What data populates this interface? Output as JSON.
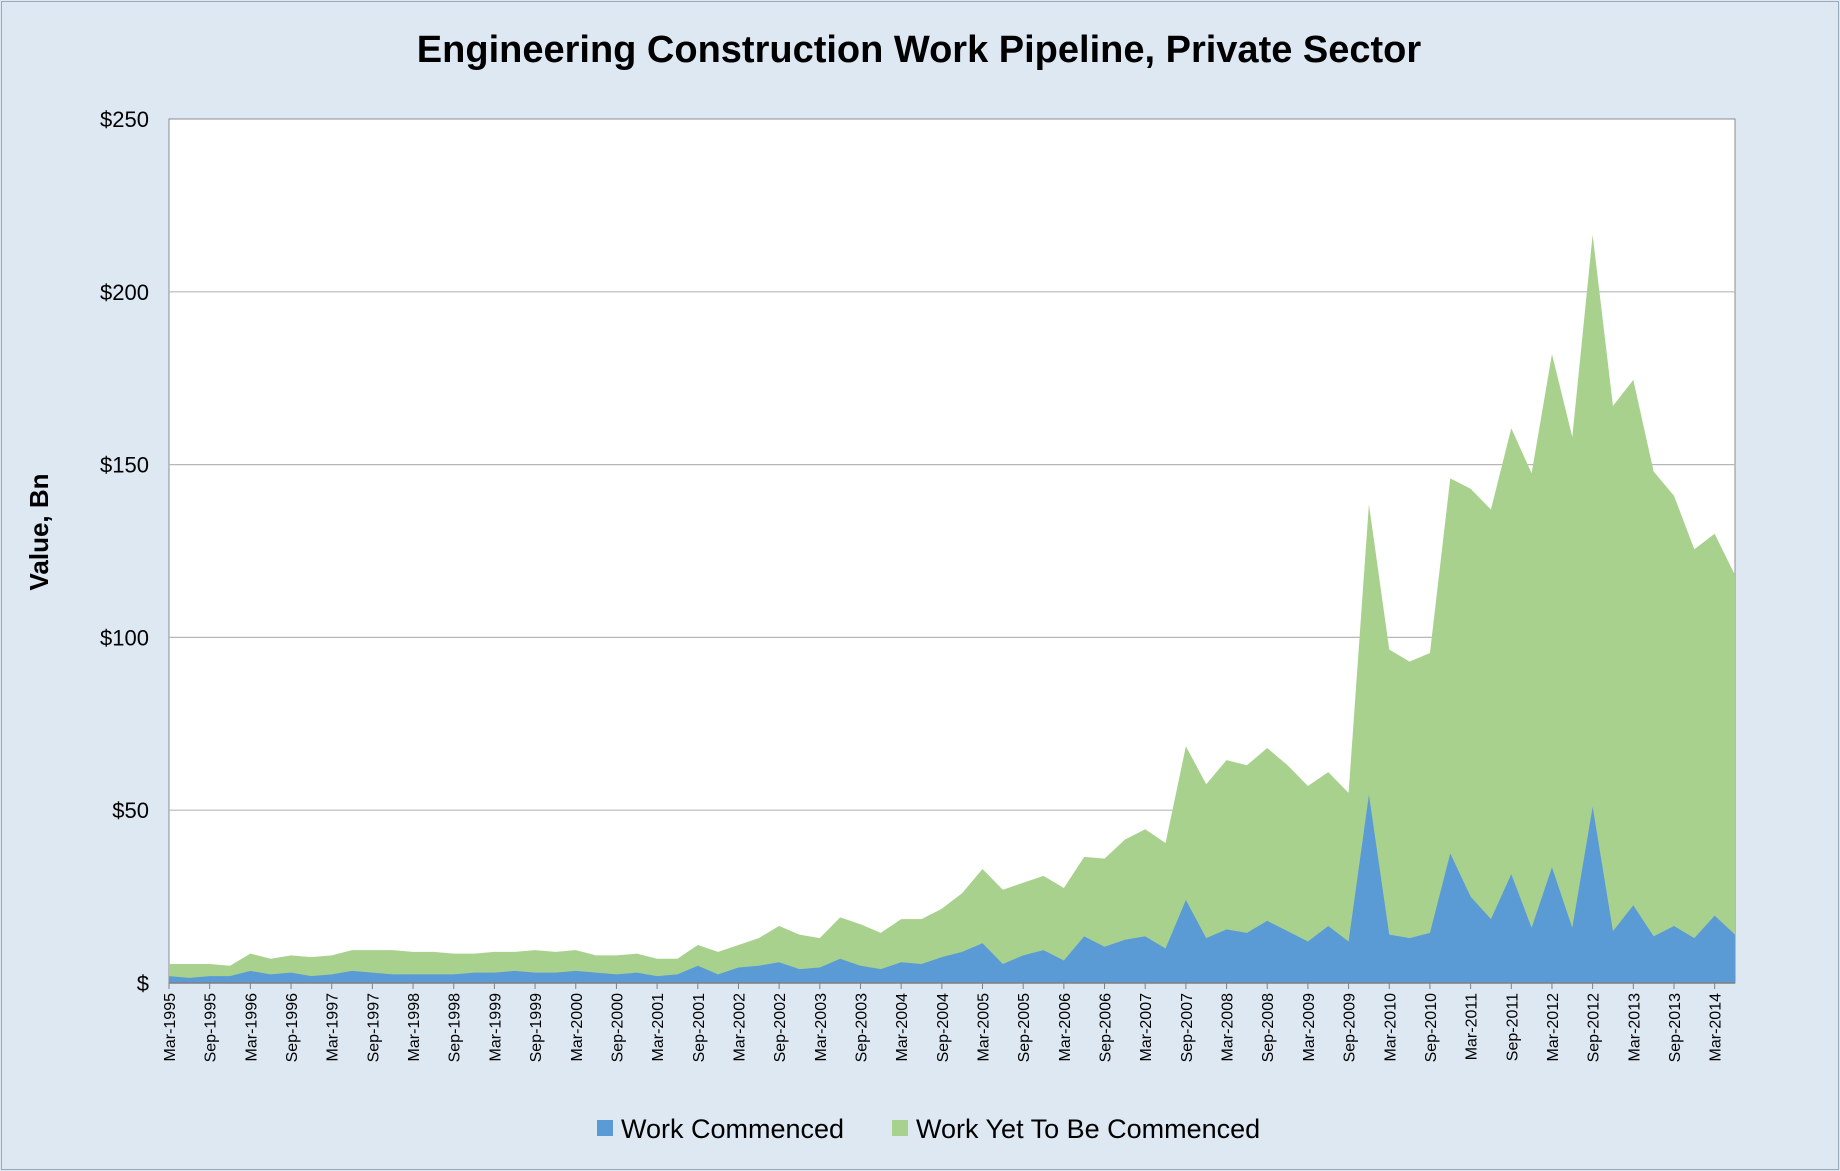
{
  "chart_data": {
    "type": "area",
    "stacked": true,
    "title": "Engineering Construction Work Pipeline, Private Sector",
    "xlabel": "",
    "ylabel": "Value, Bn",
    "ylim": [
      0,
      250
    ],
    "yticks": [
      0,
      50,
      100,
      150,
      200,
      250
    ],
    "ytick_labels": [
      "$",
      "$50",
      "$100",
      "$150",
      "$200",
      "$250"
    ],
    "grid": true,
    "legend_position": "bottom",
    "colors": {
      "Work Commenced": "#5b9bd5",
      "Work Yet To Be Commenced": "#a9d18e"
    },
    "x": [
      "Mar-1995",
      "Jun-1995",
      "Sep-1995",
      "Dec-1995",
      "Mar-1996",
      "Jun-1996",
      "Sep-1996",
      "Dec-1996",
      "Mar-1997",
      "Jun-1997",
      "Sep-1997",
      "Dec-1997",
      "Mar-1998",
      "Jun-1998",
      "Sep-1998",
      "Dec-1998",
      "Mar-1999",
      "Jun-1999",
      "Sep-1999",
      "Dec-1999",
      "Mar-2000",
      "Jun-2000",
      "Sep-2000",
      "Dec-2000",
      "Mar-2001",
      "Jun-2001",
      "Sep-2001",
      "Dec-2001",
      "Mar-2002",
      "Jun-2002",
      "Sep-2002",
      "Dec-2002",
      "Mar-2003",
      "Jun-2003",
      "Sep-2003",
      "Dec-2003",
      "Mar-2004",
      "Jun-2004",
      "Sep-2004",
      "Dec-2004",
      "Mar-2005",
      "Jun-2005",
      "Sep-2005",
      "Dec-2005",
      "Mar-2006",
      "Jun-2006",
      "Sep-2006",
      "Dec-2006",
      "Mar-2007",
      "Jun-2007",
      "Sep-2007",
      "Dec-2007",
      "Mar-2008",
      "Jun-2008",
      "Sep-2008",
      "Dec-2008",
      "Mar-2009",
      "Jun-2009",
      "Sep-2009",
      "Dec-2009",
      "Mar-2010",
      "Jun-2010",
      "Sep-2010",
      "Dec-2010",
      "Mar-2011",
      "Jun-2011",
      "Sep-2011",
      "Dec-2011",
      "Mar-2012",
      "Jun-2012",
      "Sep-2012",
      "Dec-2012",
      "Mar-2013",
      "Jun-2013",
      "Sep-2013",
      "Dec-2013",
      "Mar-2014",
      "Jun-2014"
    ],
    "x_tick_labels": [
      "Mar-1995",
      "Sep-1995",
      "Mar-1996",
      "Sep-1996",
      "Mar-1997",
      "Sep-1997",
      "Mar-1998",
      "Sep-1998",
      "Mar-1999",
      "Sep-1999",
      "Mar-2000",
      "Sep-2000",
      "Mar-2001",
      "Sep-2001",
      "Mar-2002",
      "Sep-2002",
      "Mar-2003",
      "Sep-2003",
      "Mar-2004",
      "Sep-2004",
      "Mar-2005",
      "Sep-2005",
      "Mar-2006",
      "Sep-2006",
      "Mar-2007",
      "Sep-2007",
      "Mar-2008",
      "Sep-2008",
      "Mar-2009",
      "Sep-2009",
      "Mar-2010",
      "Sep-2010",
      "Mar-2011",
      "Sep-2011",
      "Mar-2012",
      "Sep-2012",
      "Mar-2013",
      "Sep-2013",
      "Mar-2014"
    ],
    "series": [
      {
        "name": "Work Commenced",
        "values": [
          2,
          1.5,
          2,
          2,
          3.5,
          2.5,
          3,
          2,
          2.5,
          3.5,
          3,
          2.5,
          2.5,
          2.5,
          2.5,
          3,
          3,
          3.5,
          3,
          3,
          3.5,
          3,
          2.5,
          3,
          2,
          2.5,
          5,
          2.5,
          4.5,
          5,
          6,
          4,
          4.5,
          7,
          5,
          4,
          6,
          5.5,
          7.5,
          9,
          11.5,
          5.5,
          8,
          9.5,
          6.5,
          13.5,
          10.5,
          12.5,
          13.5,
          10,
          24,
          13,
          15.5,
          14.5,
          18,
          15,
          12,
          16.5,
          12,
          54.5,
          14,
          13,
          14.5,
          37.5,
          25,
          18.5,
          31.5,
          16,
          33.5,
          16,
          51,
          15,
          22.5,
          13.5,
          16.5,
          13,
          19.5,
          14
        ]
      },
      {
        "name": "Work Yet To Be Commenced",
        "values": [
          3.5,
          4,
          3.5,
          3,
          5,
          4.5,
          5,
          5.5,
          5.5,
          6,
          6.5,
          7,
          6.5,
          6.5,
          6,
          5.5,
          6,
          5.5,
          6.5,
          6,
          6,
          5,
          5.5,
          5.5,
          5,
          4.5,
          6,
          6.5,
          6.5,
          8,
          10.5,
          10,
          8.5,
          12,
          12,
          10.5,
          12.5,
          13,
          14,
          17,
          21.5,
          21.5,
          21,
          21.5,
          21,
          23,
          25.5,
          29,
          31,
          30.5,
          44.5,
          44.5,
          49,
          48.5,
          50,
          48,
          45,
          44.5,
          43,
          84,
          82.5,
          80,
          81,
          108.5,
          118,
          118.5,
          129,
          131.5,
          148.5,
          142,
          165.5,
          152,
          152,
          134.5,
          124.5,
          112.5,
          110.5,
          104
        ]
      }
    ]
  }
}
